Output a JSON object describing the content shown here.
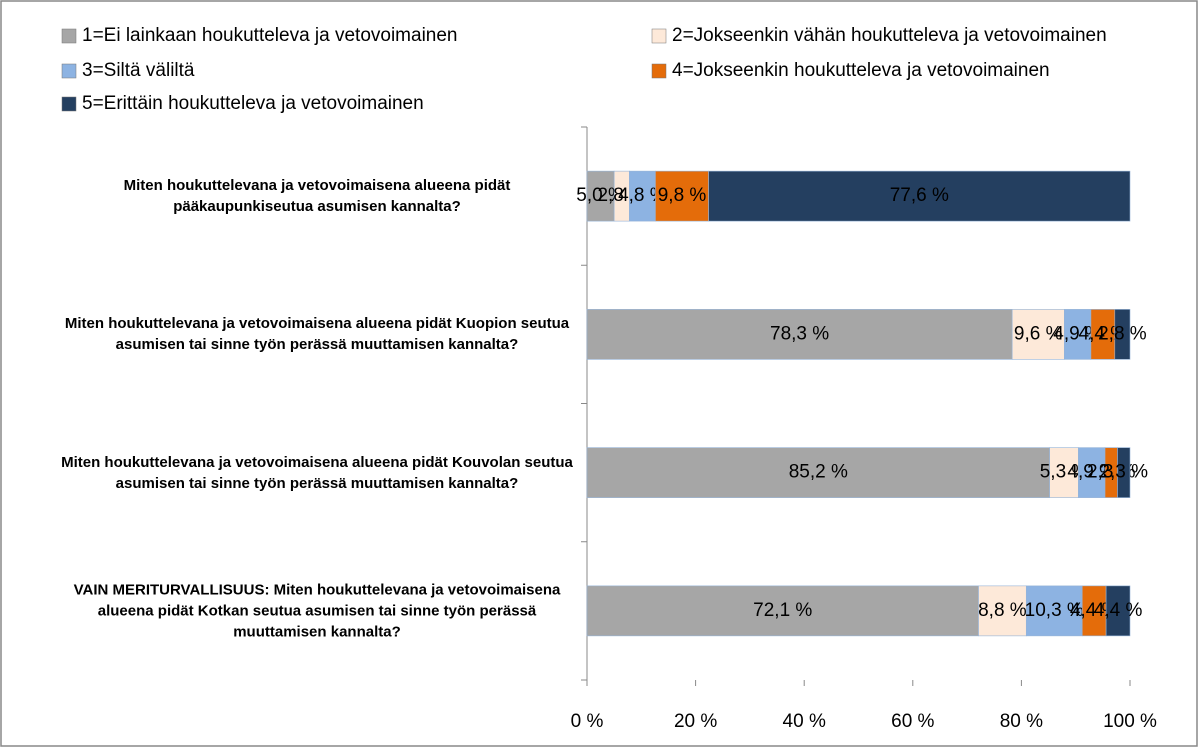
{
  "chart_data": {
    "type": "stacked_barh",
    "categories": [
      "Miten houkuttelevana ja vetovoimaisena alueena pidät pääkaupunkiseutua asumisen kannalta?",
      "Miten houkuttelevana ja vetovoimaisena alueena pidät Kuopion seutua asumisen tai sinne työn perässä muuttamisen kannalta?",
      "Miten houkuttelevana ja vetovoimaisena alueena pidät Kouvolan seutua asumisen tai sinne työn perässä muuttamisen kannalta?",
      "VAIN MERITURVALLISUUS: Miten houkuttelevana ja vetovoimaisena alueena pidät Kotkan seutua asumisen tai sinne työn perässä muuttamisen kannalta?"
    ],
    "series": [
      {
        "name": "1=Ei lainkaan houkutteleva ja vetovoimainen",
        "color": "#a6a6a6",
        "values": [
          5.0,
          78.3,
          85.2,
          72.1
        ],
        "value_labels": [
          "5,0 %",
          "78,3 %",
          "85,2 %",
          "72,1 %"
        ]
      },
      {
        "name": "2=Jokseenkin vähän houkutteleva ja vetovoimainen",
        "color": "#fde9d9",
        "values": [
          2.8,
          9.6,
          5.3,
          8.8
        ],
        "value_labels": [
          "2,8 %",
          "9,6 %",
          "5,3 %",
          "8,8 %"
        ]
      },
      {
        "name": "3=Siltä väliltä",
        "color": "#8db3e2",
        "values": [
          4.8,
          4.9,
          4.9,
          10.3
        ],
        "value_labels": [
          "4,8 %",
          "4,9 %",
          "4,9 %",
          "10,3 %"
        ]
      },
      {
        "name": "4=Jokseenkin houkutteleva ja vetovoimainen",
        "color": "#e46c0a",
        "values": [
          9.8,
          4.4,
          2.3,
          4.4
        ],
        "value_labels": [
          "9,8 %",
          "4,4 %",
          "2,3 %",
          "4,4 %"
        ]
      },
      {
        "name": "5=Erittäin houkutteleva ja vetovoimainen",
        "color": "#243f60",
        "values": [
          77.6,
          2.8,
          2.3,
          4.4
        ],
        "value_labels": [
          "77,6 %",
          "2,8 %",
          "2,3 %",
          "4,4 %"
        ]
      }
    ],
    "xlim": [
      0,
      100
    ],
    "xticks": [
      {
        "value": 0,
        "label": "0 %"
      },
      {
        "value": 20,
        "label": "20 %"
      },
      {
        "value": 40,
        "label": "40 %"
      },
      {
        "value": 60,
        "label": "60 %"
      },
      {
        "value": 80,
        "label": "80 %"
      },
      {
        "value": 100,
        "label": "100 %"
      }
    ],
    "legend": "top"
  }
}
